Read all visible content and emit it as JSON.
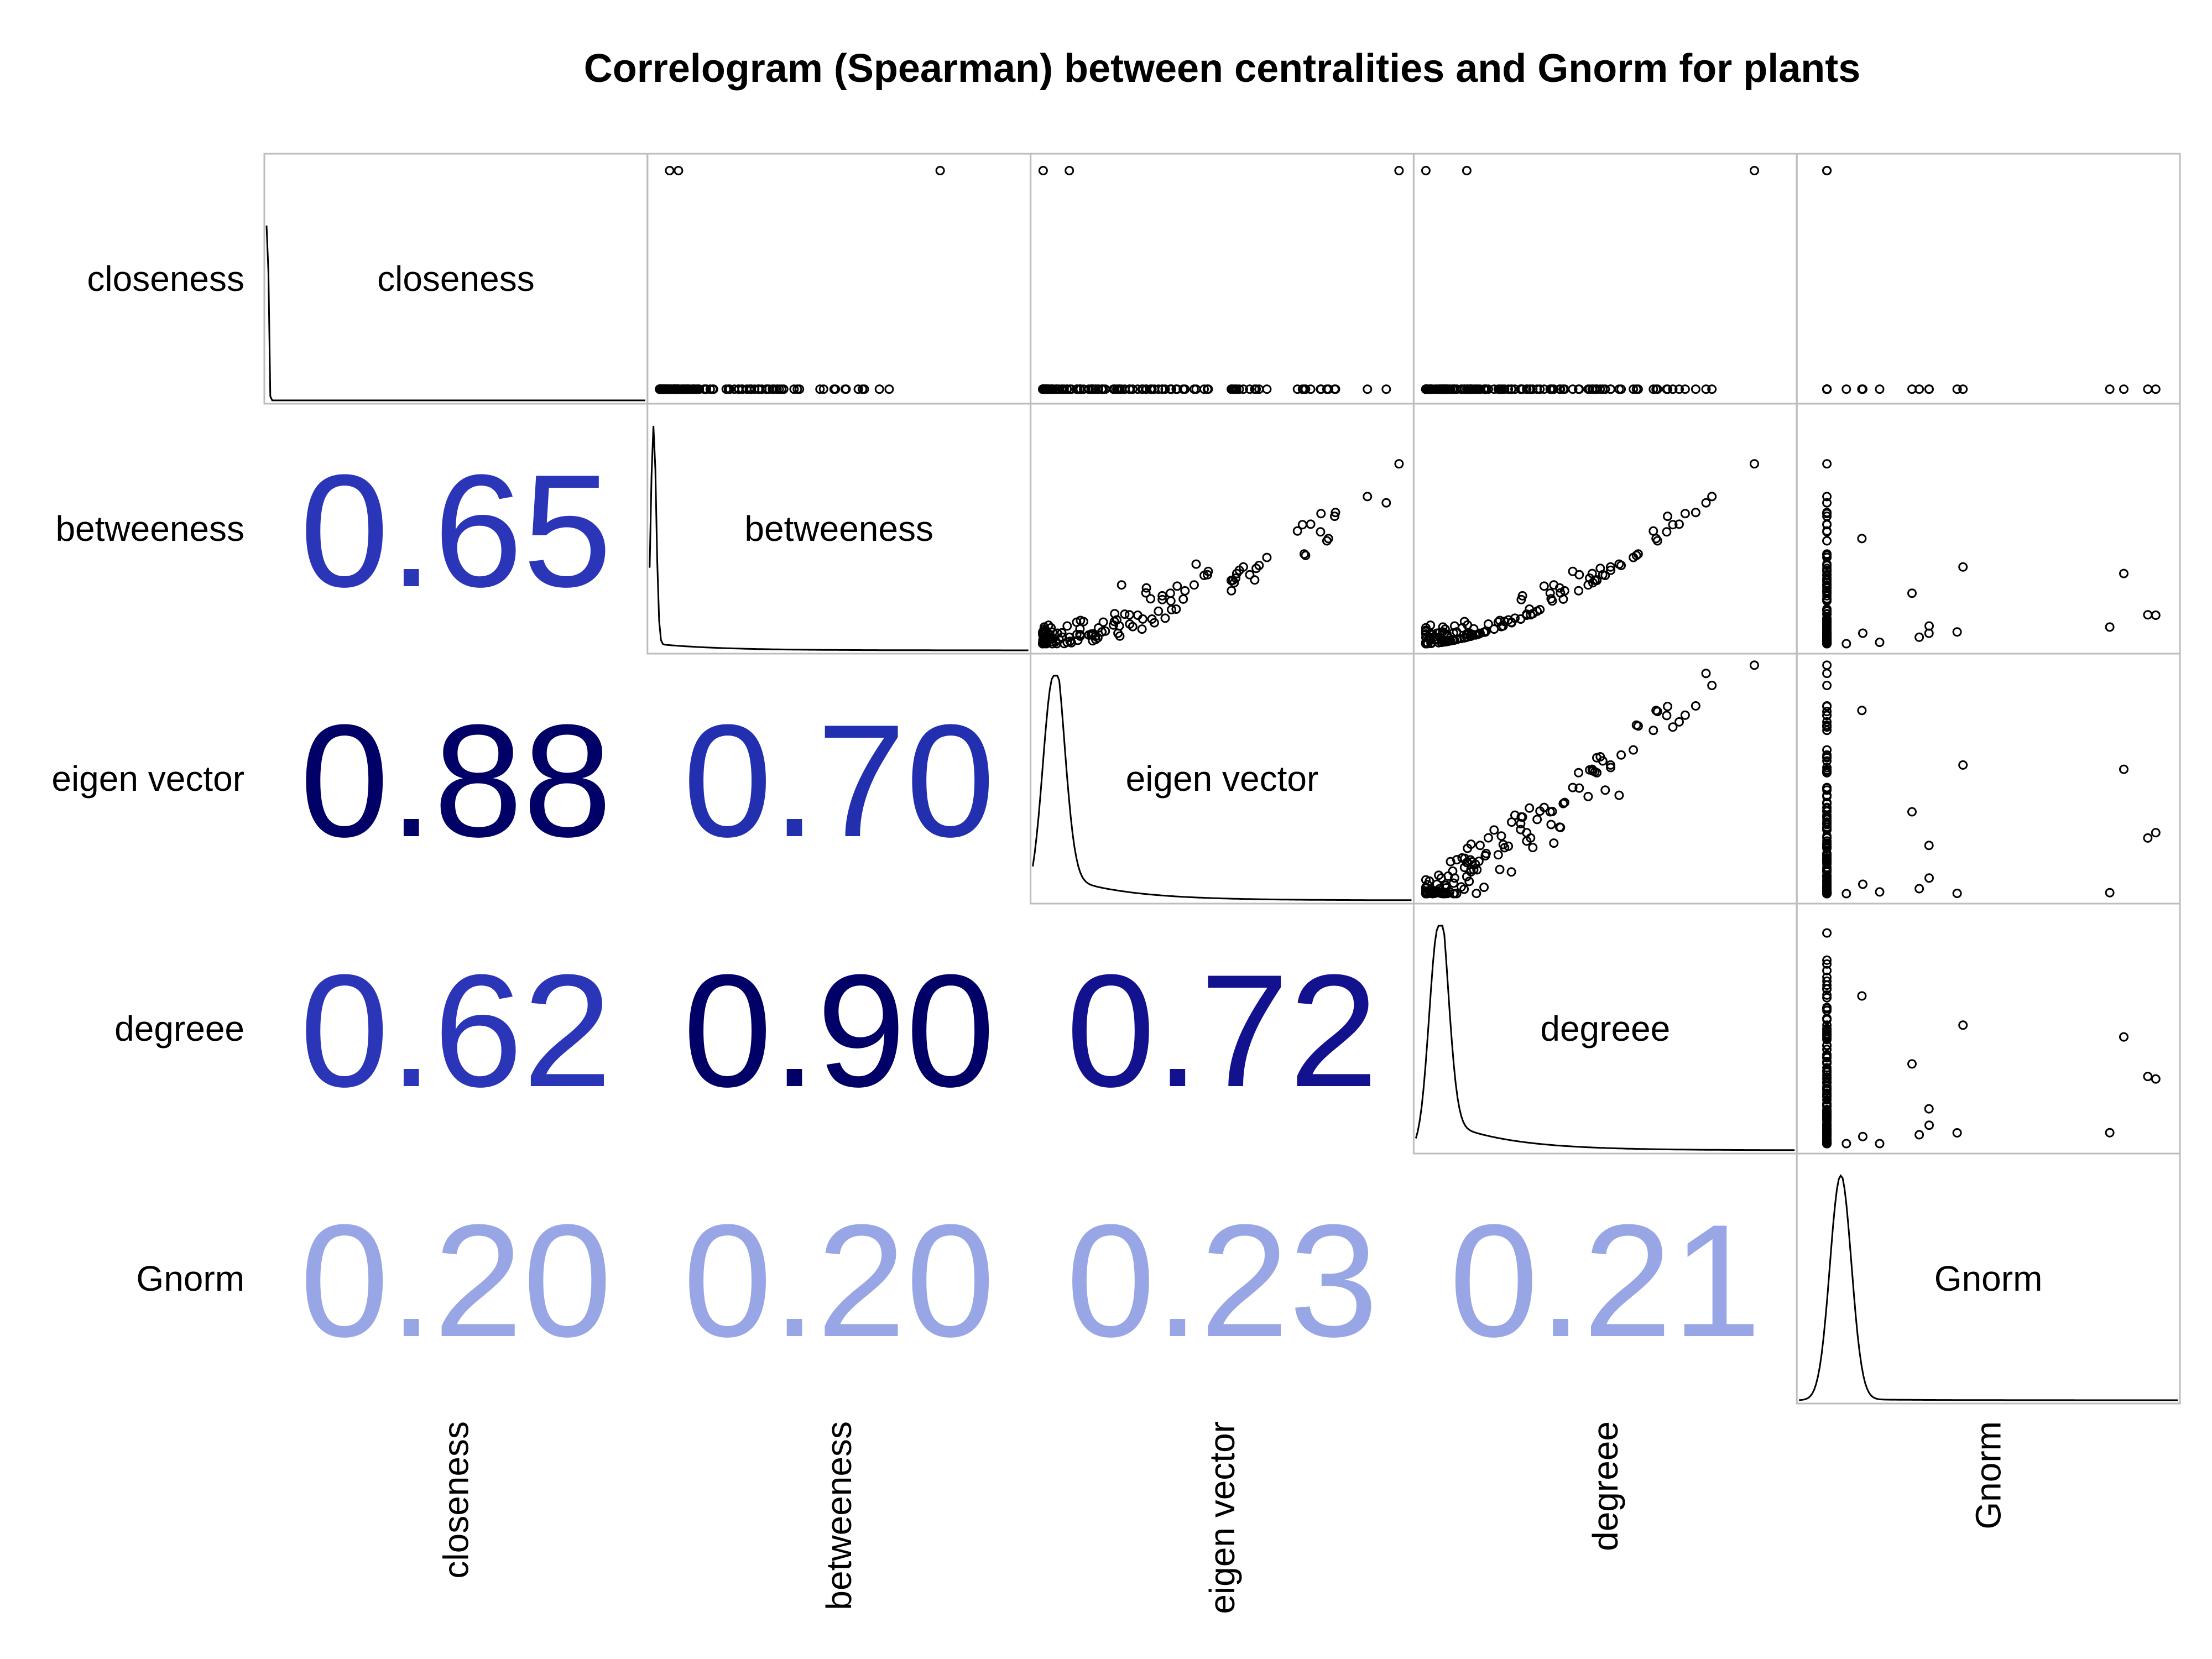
{
  "chart_data": {
    "type": "correlogram",
    "title": "Correlogram (Spearman) between centralities and Gnorm for plants",
    "method": "Spearman",
    "variables": [
      "closeness",
      "betweeness",
      "eigen vector",
      "degreee",
      "Gnorm"
    ],
    "lower_panel": "correlation coefficient",
    "upper_panel": "scatter",
    "diagonal_panel": "density",
    "correlations": [
      {
        "row": "betweeness",
        "col": "closeness",
        "value": "0.65",
        "color": "#2a35b8"
      },
      {
        "row": "eigen vector",
        "col": "closeness",
        "value": "0.88",
        "color": "#000066"
      },
      {
        "row": "eigen vector",
        "col": "betweeness",
        "value": "0.70",
        "color": "#2230b0"
      },
      {
        "row": "degreee",
        "col": "closeness",
        "value": "0.62",
        "color": "#2a35b8"
      },
      {
        "row": "degreee",
        "col": "betweeness",
        "value": "0.90",
        "color": "#000066"
      },
      {
        "row": "degreee",
        "col": "eigen vector",
        "value": "0.72",
        "color": "#12128f"
      },
      {
        "row": "Gnorm",
        "col": "closeness",
        "value": "0.20",
        "color": "#98a6e6"
      },
      {
        "row": "Gnorm",
        "col": "betweeness",
        "value": "0.20",
        "color": "#98a6e6"
      },
      {
        "row": "Gnorm",
        "col": "eigen vector",
        "value": "0.23",
        "color": "#98a6e6"
      },
      {
        "row": "Gnorm",
        "col": "degreee",
        "value": "0.21",
        "color": "#98a6e6"
      }
    ],
    "grid_color": "#bdbdbd"
  }
}
